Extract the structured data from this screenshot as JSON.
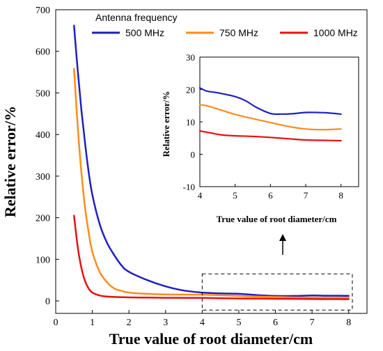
{
  "chart_data": {
    "type": "line",
    "xlabel": "True value of root diameter/cm",
    "ylabel": "Relative error/%",
    "xlim": [
      0,
      8.5
    ],
    "ylim": [
      -30,
      700
    ],
    "xticks": [
      0,
      1,
      2,
      3,
      4,
      5,
      6,
      7,
      8
    ],
    "yticks": [
      0,
      100,
      200,
      300,
      400,
      500,
      600,
      700
    ],
    "legend": {
      "title": "Antenna frequency",
      "placement": "top",
      "orientation": "horizontal"
    },
    "series": [
      {
        "name": "500 MHz",
        "color": "#1f1fbf",
        "x": [
          0.5,
          0.6,
          0.7,
          0.8,
          0.9,
          1.0,
          1.2,
          1.4,
          1.6,
          1.8,
          2.0,
          2.5,
          3.0,
          3.5,
          4.0,
          4.5,
          5.0,
          5.5,
          6.0,
          6.5,
          7.0,
          7.5,
          8.0
        ],
        "y": [
          662,
          555,
          460,
          380,
          310,
          255,
          185,
          140,
          110,
          85,
          70,
          50,
          35,
          25,
          20,
          18,
          17,
          14,
          12,
          12,
          13,
          12.5,
          12.4
        ]
      },
      {
        "name": "750 MHz",
        "color": "#ff8c1a",
        "x": [
          0.5,
          0.6,
          0.7,
          0.8,
          0.9,
          1.0,
          1.2,
          1.4,
          1.6,
          1.8,
          2.0,
          2.5,
          3.0,
          3.5,
          4.0,
          4.5,
          5.0,
          5.5,
          6.0,
          6.5,
          7.0,
          7.5,
          8.0
        ],
        "y": [
          558,
          420,
          310,
          225,
          165,
          118,
          70,
          45,
          30,
          24,
          20,
          17,
          15.5,
          15.2,
          15,
          13.5,
          12,
          10.5,
          9.5,
          8.5,
          7.8,
          7.7,
          7.8
        ]
      },
      {
        "name": "1000 MHz",
        "color": "#e81010",
        "x": [
          0.5,
          0.6,
          0.7,
          0.8,
          0.9,
          1.0,
          1.2,
          1.4,
          1.6,
          1.8,
          2.0,
          2.5,
          3.0,
          3.5,
          4.0,
          4.5,
          5.0,
          5.5,
          6.0,
          6.5,
          7.0,
          7.5,
          8.0
        ],
        "y": [
          205,
          130,
          80,
          48,
          30,
          20,
          13,
          10.5,
          9.5,
          9,
          8.5,
          8,
          7.5,
          7.3,
          7.2,
          6.5,
          5.8,
          5.5,
          5.2,
          5,
          4.5,
          4.3,
          4.2
        ]
      }
    ],
    "inset": {
      "xlabel": "True value of root diameter/cm",
      "ylabel": "Relative error/%",
      "xlim": [
        4,
        8.5
      ],
      "ylim": [
        -10,
        30
      ],
      "xticks": [
        4,
        5,
        6,
        7,
        8
      ],
      "yticks": [
        -10,
        0,
        10,
        20,
        30
      ],
      "series": [
        {
          "name": "500 MHz",
          "color": "#1f1fbf",
          "x": [
            4.0,
            4.2,
            4.5,
            5.0,
            5.3,
            5.6,
            6.0,
            6.3,
            6.6,
            7.0,
            7.3,
            7.6,
            8.0
          ],
          "y": [
            20.5,
            19.5,
            19,
            17.8,
            16.5,
            14.5,
            12.6,
            12.4,
            12.5,
            12.9,
            12.9,
            12.8,
            12.4
          ]
        },
        {
          "name": "750 MHz",
          "color": "#ff8c1a",
          "x": [
            4.0,
            4.2,
            4.5,
            5.0,
            5.5,
            6.0,
            6.5,
            7.0,
            7.5,
            8.0
          ],
          "y": [
            15.3,
            15,
            14,
            12.3,
            11,
            9.8,
            8.6,
            7.8,
            7.6,
            7.8
          ]
        },
        {
          "name": "1000 MHz",
          "color": "#e81010",
          "x": [
            4.0,
            4.3,
            4.6,
            5.0,
            5.5,
            6.0,
            6.5,
            7.0,
            7.5,
            8.0
          ],
          "y": [
            7.2,
            6.6,
            6.0,
            5.7,
            5.5,
            5.2,
            4.8,
            4.4,
            4.3,
            4.2
          ]
        }
      ]
    },
    "annotation": {
      "type": "dashed-box",
      "xrange": [
        4,
        8.1
      ],
      "yrange": [
        -22,
        65
      ]
    }
  }
}
